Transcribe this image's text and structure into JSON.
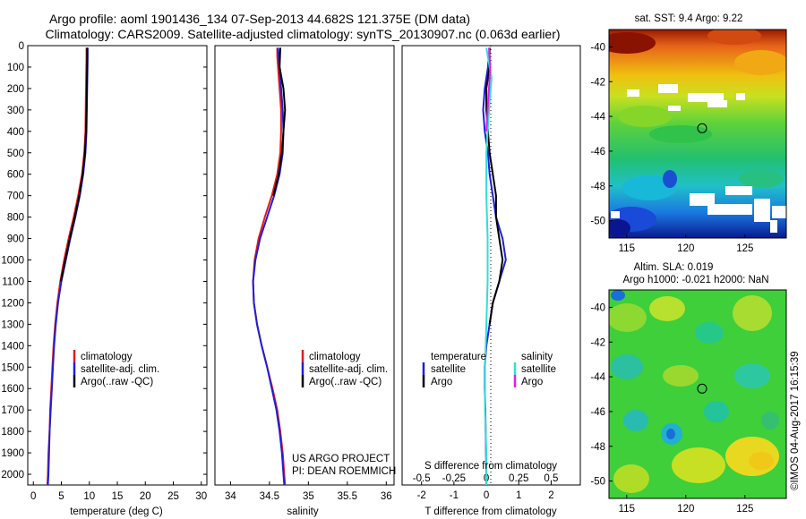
{
  "header": {
    "line1": "Argo profile: aoml 1901436_134 07-Sep-2013 44.682S 121.375E (DM data)",
    "line2": "Climatology: CARS2009. Satellite-adjusted climatology: synTS_20130907.nc (0.063d earlier)"
  },
  "colors": {
    "climatology": "#e41a1c",
    "satellite": "#1f1fd6",
    "argo": "#000000",
    "salinity_satellite": "#33dddd",
    "salinity_argo": "#dd22dd"
  },
  "depth_axis": {
    "ticks": [
      0,
      100,
      200,
      300,
      400,
      500,
      600,
      700,
      800,
      900,
      1000,
      1100,
      1200,
      1300,
      1400,
      1500,
      1600,
      1700,
      1800,
      1900,
      2000
    ],
    "ylim": [
      0,
      2050
    ]
  },
  "chart_data": [
    {
      "id": "temperature",
      "type": "line",
      "xlabel": "temperature (deg C)",
      "xlim": [
        -1,
        31
      ],
      "xticks": [
        0,
        5,
        10,
        15,
        20,
        25,
        30
      ],
      "ylim": [
        2050,
        0
      ],
      "legend": [
        "climatology",
        "satellite-adj. clim.",
        "Argo(..raw -QC)"
      ],
      "series": [
        {
          "name": "climatology",
          "color": "climatology",
          "points": [
            [
              9.5,
              10
            ],
            [
              9.5,
              50
            ],
            [
              9.4,
              200
            ],
            [
              9.3,
              400
            ],
            [
              9.1,
              500
            ],
            [
              8.7,
              600
            ],
            [
              8.0,
              700
            ],
            [
              7.2,
              800
            ],
            [
              6.3,
              900
            ],
            [
              5.5,
              1000
            ],
            [
              4.8,
              1100
            ],
            [
              4.3,
              1200
            ],
            [
              3.9,
              1300
            ],
            [
              3.6,
              1400
            ],
            [
              3.4,
              1500
            ],
            [
              3.2,
              1600
            ],
            [
              3.0,
              1700
            ],
            [
              2.9,
              1800
            ],
            [
              2.7,
              1900
            ],
            [
              2.6,
              2000
            ],
            [
              2.5,
              2050
            ]
          ]
        },
        {
          "name": "satellite-adj. clim.",
          "color": "satellite",
          "points": [
            [
              9.7,
              10
            ],
            [
              9.7,
              50
            ],
            [
              9.6,
              200
            ],
            [
              9.5,
              400
            ],
            [
              9.3,
              500
            ],
            [
              8.9,
              600
            ],
            [
              8.3,
              700
            ],
            [
              7.5,
              800
            ],
            [
              6.6,
              900
            ],
            [
              5.8,
              1000
            ],
            [
              5.0,
              1100
            ],
            [
              4.4,
              1200
            ],
            [
              4.0,
              1300
            ],
            [
              3.7,
              1400
            ],
            [
              3.5,
              1500
            ],
            [
              3.3,
              1600
            ],
            [
              3.1,
              1700
            ],
            [
              2.9,
              1800
            ],
            [
              2.8,
              1900
            ],
            [
              2.7,
              2000
            ],
            [
              2.6,
              2050
            ]
          ]
        },
        {
          "name": "Argo(..raw -QC)",
          "color": "argo",
          "points": [
            [
              9.6,
              10
            ],
            [
              9.6,
              100
            ],
            [
              9.5,
              300
            ],
            [
              9.4,
              400
            ],
            [
              9.2,
              500
            ],
            [
              8.8,
              600
            ],
            [
              8.2,
              700
            ],
            [
              7.4,
              800
            ],
            [
              6.5,
              900
            ],
            [
              5.7,
              1000
            ],
            [
              4.9,
              1100
            ]
          ]
        }
      ]
    },
    {
      "id": "salinity",
      "type": "line",
      "xlabel": "salinity",
      "xlim": [
        33.8,
        36.1
      ],
      "xticks": [
        34,
        34.5,
        35,
        35.5,
        36
      ],
      "ylim": [
        2050,
        0
      ],
      "legend": [
        "climatology",
        "satellite-adj. clim.",
        "Argo(..raw -QC)"
      ],
      "annotation": [
        "US ARGO PROJECT",
        "PI: DEAN ROEMMICH"
      ],
      "series": [
        {
          "name": "climatology",
          "color": "climatology",
          "points": [
            [
              34.6,
              10
            ],
            [
              34.6,
              50
            ],
            [
              34.62,
              150
            ],
            [
              34.65,
              300
            ],
            [
              34.65,
              400
            ],
            [
              34.64,
              500
            ],
            [
              34.6,
              600
            ],
            [
              34.53,
              700
            ],
            [
              34.44,
              800
            ],
            [
              34.36,
              900
            ],
            [
              34.31,
              1000
            ],
            [
              34.29,
              1100
            ],
            [
              34.3,
              1200
            ],
            [
              34.34,
              1300
            ],
            [
              34.4,
              1400
            ],
            [
              34.47,
              1500
            ],
            [
              34.54,
              1600
            ],
            [
              34.6,
              1700
            ],
            [
              34.64,
              1800
            ],
            [
              34.67,
              1900
            ],
            [
              34.69,
              2000
            ],
            [
              34.7,
              2050
            ]
          ]
        },
        {
          "name": "satellite-adj. clim.",
          "color": "satellite",
          "points": [
            [
              34.61,
              10
            ],
            [
              34.62,
              50
            ],
            [
              34.64,
              150
            ],
            [
              34.67,
              300
            ],
            [
              34.68,
              400
            ],
            [
              34.67,
              500
            ],
            [
              34.63,
              600
            ],
            [
              34.56,
              700
            ],
            [
              34.47,
              800
            ],
            [
              34.38,
              900
            ],
            [
              34.32,
              1000
            ],
            [
              34.29,
              1100
            ],
            [
              34.3,
              1200
            ],
            [
              34.34,
              1300
            ],
            [
              34.4,
              1400
            ],
            [
              34.47,
              1500
            ],
            [
              34.53,
              1600
            ],
            [
              34.59,
              1700
            ],
            [
              34.63,
              1800
            ],
            [
              34.66,
              1900
            ],
            [
              34.68,
              2000
            ],
            [
              34.69,
              2050
            ]
          ]
        },
        {
          "name": "Argo(..raw -QC)",
          "color": "argo",
          "points": [
            [
              34.64,
              10
            ],
            [
              34.63,
              100
            ],
            [
              34.68,
              200
            ],
            [
              34.7,
              300
            ],
            [
              34.68,
              400
            ],
            [
              34.66,
              500
            ],
            [
              34.62,
              600
            ],
            [
              34.55,
              700
            ]
          ]
        }
      ]
    },
    {
      "id": "difference",
      "type": "line",
      "xlabel": "T difference from climatology",
      "xlabel_top": "S difference from climatology",
      "xlim": [
        -2.6,
        2.9
      ],
      "xticks": [
        -2,
        -1,
        0,
        1,
        2
      ],
      "xticks_top": [
        -0.5,
        -0.25,
        0,
        0.25,
        0.5
      ],
      "xlim_top": [
        -0.65,
        0.725
      ],
      "ylim": [
        2050,
        0
      ],
      "legend_titles": [
        "temperature",
        "salinity"
      ],
      "legend": [
        "satellite",
        "Argo",
        "satellite",
        "Argo"
      ],
      "series": [
        {
          "name": "temperature satellite",
          "color": "satellite",
          "points": [
            [
              0.1,
              10
            ],
            [
              0.05,
              100
            ],
            [
              -0.05,
              200
            ],
            [
              -0.1,
              300
            ],
            [
              -0.05,
              400
            ],
            [
              0.05,
              500
            ],
            [
              0.1,
              600
            ],
            [
              0.2,
              700
            ],
            [
              0.3,
              800
            ],
            [
              0.5,
              900
            ],
            [
              0.6,
              1000
            ],
            [
              0.4,
              1100
            ],
            [
              0.2,
              1200
            ],
            [
              0.1,
              1300
            ],
            [
              0.0,
              1400
            ],
            [
              -0.05,
              1500
            ],
            [
              -0.05,
              1600
            ],
            [
              -0.03,
              1700
            ],
            [
              -0.02,
              1800
            ],
            [
              -0.01,
              1900
            ],
            [
              0.0,
              2000
            ],
            [
              0.0,
              2050
            ]
          ]
        },
        {
          "name": "temperature Argo",
          "color": "argo",
          "points": [
            [
              0.1,
              10
            ],
            [
              0.1,
              100
            ],
            [
              0.0,
              200
            ],
            [
              0.0,
              300
            ],
            [
              0.1,
              500
            ],
            [
              0.2,
              600
            ],
            [
              0.3,
              700
            ],
            [
              0.3,
              800
            ],
            [
              0.4,
              900
            ],
            [
              0.5,
              1000
            ],
            [
              0.4,
              1100
            ],
            [
              0.2,
              1200
            ],
            [
              0.1,
              1300
            ]
          ]
        },
        {
          "name": "salinity satellite",
          "color": "salinity_satellite",
          "points": [
            [
              0.0,
              10
            ],
            [
              0.02,
              80
            ],
            [
              0.04,
              150
            ],
            [
              0.02,
              300
            ],
            [
              0.0,
              500
            ],
            [
              0.0,
              700
            ],
            [
              0.01,
              900
            ],
            [
              0.01,
              1100
            ],
            [
              0.0,
              1300
            ],
            [
              -0.01,
              1500
            ],
            [
              -0.01,
              1700
            ],
            [
              0.0,
              1900
            ],
            [
              0.0,
              2050
            ]
          ]
        },
        {
          "name": "salinity Argo",
          "color": "salinity_argo",
          "points": [
            [
              0.02,
              10
            ],
            [
              0.03,
              100
            ],
            [
              0.02,
              200
            ],
            [
              0.01,
              300
            ],
            [
              0.0,
              400
            ]
          ]
        }
      ]
    }
  ],
  "maps": {
    "sst": {
      "title": "sat. SST: 9.4 Argo: 9.22",
      "xticks": [
        115,
        120,
        125
      ],
      "yticks": [
        -40,
        -42,
        -44,
        -46,
        -48,
        -50
      ],
      "lon_range": [
        113.5,
        128.5
      ],
      "lat_range": [
        -51,
        -39
      ],
      "argo_marker": [
        121.375,
        -44.682
      ]
    },
    "sla": {
      "title_line1": "Altim. SLA: 0.019",
      "title_line2": "Argo h1000: -0.021 h2000: NaN",
      "xticks": [
        115,
        120,
        125
      ],
      "yticks": [
        -40,
        -42,
        -44,
        -46,
        -48,
        -50
      ],
      "lon_range": [
        113.5,
        128.5
      ],
      "lat_range": [
        -51,
        -39
      ],
      "argo_marker": [
        121.375,
        -44.682
      ]
    }
  },
  "footer_vertical": "©IMOS 04-Aug-2017 16:15:39"
}
